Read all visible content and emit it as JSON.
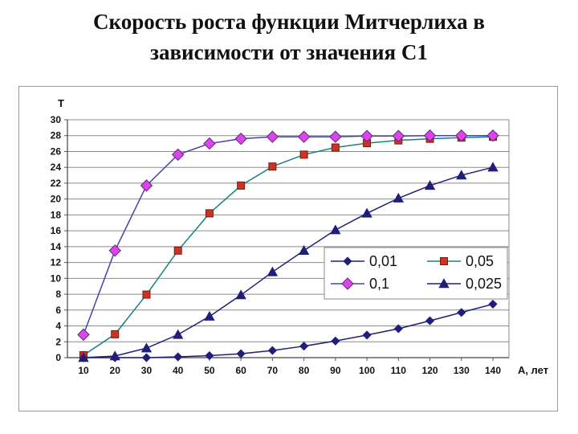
{
  "title_lines": [
    "Скорость роста  функции Митчерлиха в",
    "зависимости от значения С1"
  ],
  "chart_data": {
    "type": "line",
    "title": "Скорость роста  функции Митчерлиха в зависимости от значения С1",
    "xlabel": "А, лет",
    "ylabel": "T",
    "x": [
      10,
      20,
      30,
      40,
      50,
      60,
      70,
      80,
      90,
      100,
      110,
      120,
      130,
      140
    ],
    "xlim": [
      10,
      140
    ],
    "ylim": [
      0,
      30
    ],
    "yticks": [
      0,
      2,
      4,
      6,
      8,
      10,
      12,
      14,
      16,
      18,
      20,
      22,
      24,
      26,
      28,
      30
    ],
    "grid": "horizontal",
    "legend_position": "center-right",
    "series": [
      {
        "name": "0,01",
        "color": "#1f1f7a",
        "line_color": "#1f1f7a",
        "marker": "diamond",
        "values": [
          0,
          0,
          0,
          0.1,
          0.25,
          0.5,
          0.9,
          1.45,
          2.1,
          2.85,
          3.65,
          4.65,
          5.7,
          6.75
        ]
      },
      {
        "name": "0,05",
        "color": "#cc3322",
        "line_color": "#1a8080",
        "marker": "square",
        "values": [
          0.3,
          2.95,
          7.95,
          13.5,
          18.2,
          21.7,
          24.1,
          25.6,
          26.5,
          27.05,
          27.4,
          27.6,
          27.75,
          27.85
        ]
      },
      {
        "name": "0,1",
        "color": "#dd44ee",
        "line_color": "#4444aa",
        "marker": "diamond-large",
        "values": [
          2.9,
          13.5,
          21.7,
          25.6,
          27.0,
          27.6,
          27.85,
          27.85,
          27.85,
          27.95,
          27.95,
          28.0,
          28.0,
          28.0
        ]
      },
      {
        "name": "0,025",
        "color": "#1f1f7a",
        "line_color": "#1f1f7a",
        "marker": "triangle",
        "values": [
          0,
          0.2,
          1.2,
          2.9,
          5.2,
          7.9,
          10.8,
          13.5,
          16.1,
          18.2,
          20.1,
          21.7,
          23.0,
          24.0
        ]
      }
    ]
  }
}
